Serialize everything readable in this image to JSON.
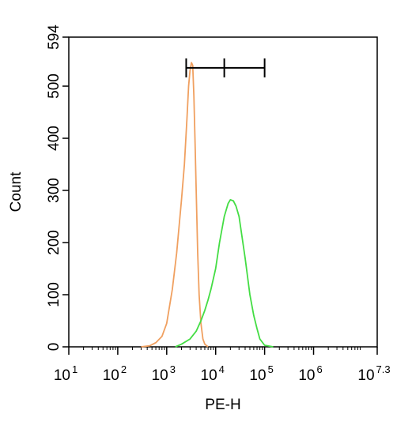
{
  "chart_data": {
    "type": "line",
    "xlabel": "PE-H",
    "ylabel": "Count",
    "x_scale": "log10",
    "xlim": [
      10,
      19952623
    ],
    "ylim": [
      0,
      594
    ],
    "x_ticks": [
      {
        "base": "10",
        "exp": "1"
      },
      {
        "base": "10",
        "exp": "2"
      },
      {
        "base": "10",
        "exp": "3"
      },
      {
        "base": "10",
        "exp": "4"
      },
      {
        "base": "10",
        "exp": "5"
      },
      {
        "base": "10",
        "exp": "6"
      },
      {
        "base": "10",
        "exp": "7.3"
      }
    ],
    "y_ticks": [
      "0",
      "100",
      "200",
      "300",
      "400",
      "500",
      "594"
    ],
    "series": [
      {
        "color": "#f0a060",
        "x": [
          300,
          450,
          600,
          800,
          1000,
          1300,
          1600,
          2000,
          2300,
          2600,
          2800,
          3000,
          3200,
          3400,
          3600,
          3800,
          4000,
          4300,
          4600,
          5000,
          5500,
          6000,
          7000
        ],
        "y": [
          0,
          2,
          8,
          20,
          45,
          110,
          180,
          280,
          350,
          440,
          500,
          530,
          545,
          540,
          480,
          390,
          300,
          180,
          100,
          45,
          15,
          5,
          0
        ]
      },
      {
        "color": "#44dd44",
        "x": [
          1500,
          2000,
          3000,
          4000,
          5000,
          6000,
          7000,
          8000,
          10000,
          12000,
          15000,
          18000,
          20000,
          23000,
          26000,
          30000,
          40000,
          50000,
          60000,
          70000,
          80000,
          100000,
          150000
        ],
        "y": [
          0,
          5,
          15,
          30,
          50,
          70,
          90,
          110,
          150,
          200,
          250,
          275,
          282,
          280,
          270,
          250,
          170,
          100,
          60,
          35,
          15,
          3,
          0
        ]
      }
    ],
    "gate": {
      "x_start": 2500,
      "x_mid": 15000,
      "x_end": 100000,
      "y": 535
    }
  }
}
